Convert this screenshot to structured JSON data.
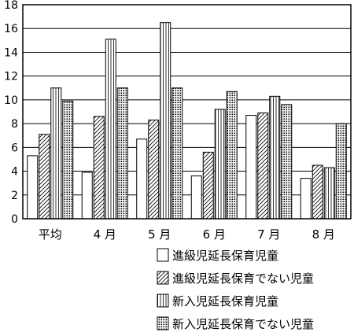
{
  "chart_data": {
    "type": "bar",
    "title": "",
    "xlabel": "",
    "ylabel": "",
    "categories": [
      "平均",
      "4 月",
      "5 月",
      "6 月",
      "7 月",
      "8 月"
    ],
    "ylim": [
      0,
      18
    ],
    "yticks": [
      0,
      2,
      4,
      6,
      8,
      10,
      12,
      14,
      16,
      18
    ],
    "grid": true,
    "legend_placement": "bottom-right",
    "series": [
      {
        "name": "進級児延長保育児童",
        "pattern": "plain",
        "values": [
          5.3,
          3.9,
          6.7,
          3.6,
          8.7,
          3.4
        ]
      },
      {
        "name": "進級児延長保育でない児童",
        "pattern": "diagonal",
        "values": [
          7.1,
          8.6,
          8.3,
          5.6,
          8.9,
          4.5
        ]
      },
      {
        "name": "新入児延長保育児童",
        "pattern": "vertical",
        "values": [
          11.0,
          15.1,
          16.5,
          9.2,
          10.3,
          4.3
        ]
      },
      {
        "name": "新入児延長保育でない児童",
        "pattern": "dots",
        "values": [
          9.9,
          11.0,
          11.0,
          10.7,
          9.6,
          8.0
        ]
      }
    ]
  }
}
